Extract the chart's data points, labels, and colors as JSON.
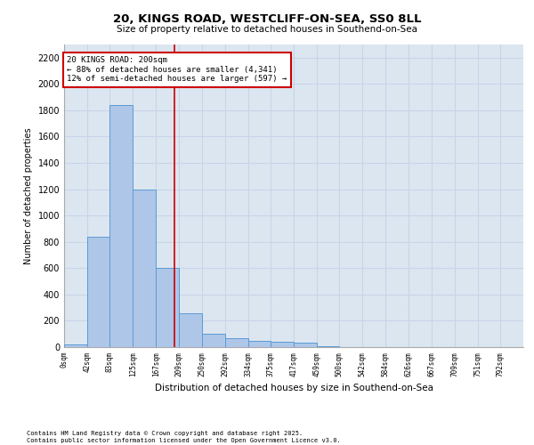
{
  "title1": "20, KINGS ROAD, WESTCLIFF-ON-SEA, SS0 8LL",
  "title2": "Size of property relative to detached houses in Southend-on-Sea",
  "xlabel": "Distribution of detached houses by size in Southend-on-Sea",
  "ylabel": "Number of detached properties",
  "bar_edges": [
    0,
    42,
    83,
    125,
    167,
    209,
    250,
    292,
    334,
    375,
    417,
    459,
    500,
    542,
    584,
    626,
    667,
    709,
    751,
    792,
    834
  ],
  "bar_heights": [
    20,
    840,
    1840,
    1200,
    600,
    260,
    100,
    70,
    50,
    40,
    35,
    5,
    0,
    0,
    0,
    0,
    0,
    0,
    0,
    0
  ],
  "bar_color": "#aec6e8",
  "bar_edge_color": "#5b9bd5",
  "vline_x": 200,
  "vline_color": "#cc0000",
  "annotation_text": "20 KINGS ROAD: 200sqm\n← 88% of detached houses are smaller (4,341)\n12% of semi-detached houses are larger (597) →",
  "annotation_box_color": "#ffffff",
  "annotation_box_edge": "#cc0000",
  "ylim": [
    0,
    2300
  ],
  "yticks": [
    0,
    200,
    400,
    600,
    800,
    1000,
    1200,
    1400,
    1600,
    1800,
    2000,
    2200
  ],
  "grid_color": "#c8d4e8",
  "background_color": "#dce6f1",
  "footer1": "Contains HM Land Registry data © Crown copyright and database right 2025.",
  "footer2": "Contains public sector information licensed under the Open Government Licence v3.0."
}
